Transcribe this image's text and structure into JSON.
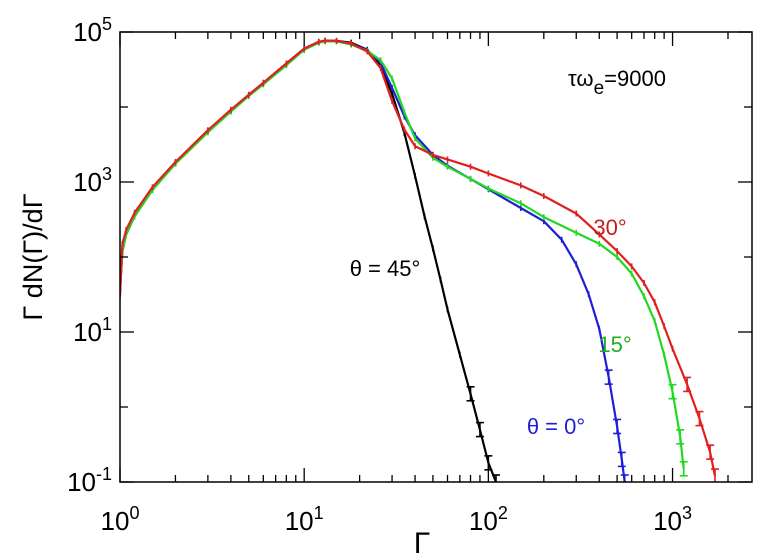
{
  "chart_data": {
    "type": "line",
    "xscale": "log",
    "yscale": "log",
    "xlim": [
      1,
      2700
    ],
    "ylim": [
      0.1,
      100000
    ],
    "xlabel": "Γ",
    "ylabel": "Γ dN(Γ)/dΓ",
    "grid": false,
    "x_ticks": [
      {
        "base": "10",
        "exp": "0",
        "value": 1
      },
      {
        "base": "10",
        "exp": "1",
        "value": 10
      },
      {
        "base": "10",
        "exp": "2",
        "value": 100
      },
      {
        "base": "10",
        "exp": "3",
        "value": 1000
      }
    ],
    "y_ticks": [
      {
        "base": "10",
        "exp": "-1",
        "value": 0.1
      },
      {
        "base": "10",
        "exp": "1",
        "value": 10
      },
      {
        "base": "10",
        "exp": "3",
        "value": 1000
      },
      {
        "base": "10",
        "exp": "5",
        "value": 100000
      }
    ],
    "annotation": {
      "tau": "τω",
      "sub": "e",
      "value": "=9000"
    },
    "series": [
      {
        "name": "θ = 0°",
        "color": "#1f1fd6",
        "points": [
          [
            1.0,
            40
          ],
          [
            1.03,
            130
          ],
          [
            1.08,
            210
          ],
          [
            1.2,
            360
          ],
          [
            1.5,
            800
          ],
          [
            2,
            1800
          ],
          [
            3,
            4800
          ],
          [
            4,
            9000
          ],
          [
            5,
            14500
          ],
          [
            6,
            21000
          ],
          [
            8,
            38000
          ],
          [
            10,
            60000
          ],
          [
            12,
            74000
          ],
          [
            13,
            76000
          ],
          [
            15,
            76000
          ],
          [
            18,
            70000
          ],
          [
            22,
            57000
          ],
          [
            26,
            39000
          ],
          [
            30,
            18000
          ],
          [
            35,
            7500
          ],
          [
            40,
            4200
          ],
          [
            50,
            2300
          ],
          [
            60,
            1650
          ],
          [
            80,
            1100
          ],
          [
            100,
            800
          ],
          [
            150,
            450
          ],
          [
            200,
            300
          ],
          [
            250,
            170
          ],
          [
            300,
            80
          ],
          [
            350,
            32
          ],
          [
            400,
            11
          ],
          [
            450,
            2.5
          ],
          [
            500,
            0.55
          ],
          [
            530,
            0.2
          ],
          [
            550,
            0.1
          ]
        ]
      },
      {
        "name": "15°",
        "color": "#22d822",
        "points": [
          [
            1.0,
            35
          ],
          [
            1.03,
            120
          ],
          [
            1.08,
            200
          ],
          [
            1.2,
            350
          ],
          [
            1.5,
            780
          ],
          [
            2,
            1750
          ],
          [
            3,
            4600
          ],
          [
            4,
            8700
          ],
          [
            5,
            14000
          ],
          [
            6,
            20000
          ],
          [
            8,
            36000
          ],
          [
            10,
            58000
          ],
          [
            12,
            72000
          ],
          [
            13,
            75000
          ],
          [
            15,
            75000
          ],
          [
            18,
            68000
          ],
          [
            22,
            56000
          ],
          [
            26,
            42000
          ],
          [
            30,
            24000
          ],
          [
            35,
            8500
          ],
          [
            40,
            3800
          ],
          [
            50,
            2100
          ],
          [
            60,
            1600
          ],
          [
            80,
            1100
          ],
          [
            100,
            820
          ],
          [
            150,
            520
          ],
          [
            200,
            340
          ],
          [
            300,
            210
          ],
          [
            400,
            150
          ],
          [
            500,
            100
          ],
          [
            600,
            60
          ],
          [
            700,
            30
          ],
          [
            800,
            14
          ],
          [
            900,
            5
          ],
          [
            1000,
            1.6
          ],
          [
            1100,
            0.4
          ],
          [
            1150,
            0.15
          ]
        ]
      },
      {
        "name": "30°",
        "color": "#e02020",
        "points": [
          [
            1.0,
            30
          ],
          [
            1.03,
            150
          ],
          [
            1.08,
            230
          ],
          [
            1.2,
            390
          ],
          [
            1.5,
            850
          ],
          [
            2,
            1850
          ],
          [
            3,
            4900
          ],
          [
            4,
            9200
          ],
          [
            5,
            14500
          ],
          [
            6,
            21000
          ],
          [
            8,
            38000
          ],
          [
            10,
            60000
          ],
          [
            12,
            74000
          ],
          [
            13,
            77000
          ],
          [
            15,
            76000
          ],
          [
            18,
            70000
          ],
          [
            22,
            55000
          ],
          [
            26,
            33000
          ],
          [
            30,
            12000
          ],
          [
            35,
            5000
          ],
          [
            40,
            3000
          ],
          [
            50,
            2300
          ],
          [
            60,
            2000
          ],
          [
            80,
            1600
          ],
          [
            100,
            1300
          ],
          [
            150,
            900
          ],
          [
            200,
            650
          ],
          [
            300,
            380
          ],
          [
            400,
            200
          ],
          [
            500,
            120
          ],
          [
            600,
            75
          ],
          [
            700,
            45
          ],
          [
            800,
            25
          ],
          [
            900,
            12
          ],
          [
            1000,
            6
          ],
          [
            1200,
            2
          ],
          [
            1400,
            0.7
          ],
          [
            1600,
            0.25
          ],
          [
            1700,
            0.12
          ]
        ]
      },
      {
        "name": "θ = 45°",
        "color": "#000000",
        "points": [
          [
            1.0,
            38
          ],
          [
            1.03,
            120
          ],
          [
            1.08,
            200
          ],
          [
            1.2,
            350
          ],
          [
            1.5,
            790
          ],
          [
            2,
            1780
          ],
          [
            3,
            4700
          ],
          [
            4,
            8800
          ],
          [
            5,
            14200
          ],
          [
            6,
            20500
          ],
          [
            8,
            37000
          ],
          [
            10,
            58000
          ],
          [
            12,
            73000
          ],
          [
            13,
            76000
          ],
          [
            15,
            76000
          ],
          [
            18,
            72000
          ],
          [
            22,
            58000
          ],
          [
            26,
            35000
          ],
          [
            30,
            15000
          ],
          [
            35,
            4500
          ],
          [
            40,
            1200
          ],
          [
            45,
            350
          ],
          [
            50,
            130
          ],
          [
            55,
            50
          ],
          [
            60,
            20
          ],
          [
            70,
            5
          ],
          [
            80,
            1.5
          ],
          [
            90,
            0.5
          ],
          [
            100,
            0.18
          ],
          [
            110,
            0.1
          ]
        ]
      }
    ],
    "labels": [
      {
        "series": "30°",
        "text": "30°",
        "color": "#c81c1c"
      },
      {
        "series": "15°",
        "text": "15°",
        "color": "#1eb01e"
      },
      {
        "series": "θ = 0°",
        "text": "θ = 0°",
        "color": "#1f1fd6"
      },
      {
        "series": "θ = 45°",
        "text": "θ = 45°",
        "color": "#000000"
      }
    ]
  }
}
